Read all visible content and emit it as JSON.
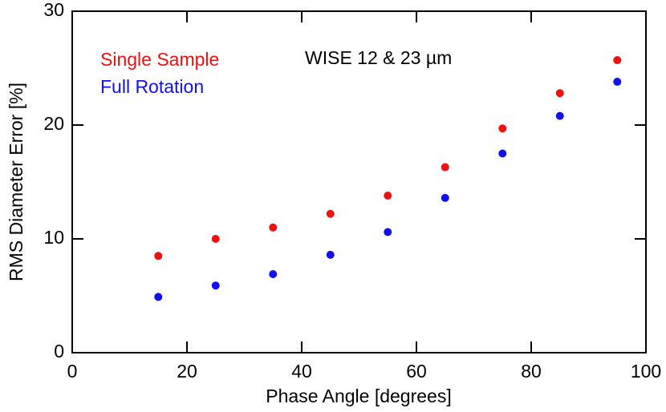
{
  "chart_data": {
    "type": "scatter",
    "xlabel": "Phase Angle [degrees]",
    "ylabel": "RMS Diameter Error [%]",
    "annotation": "WISE 12 & 23 µm",
    "x": [
      15,
      25,
      35,
      45,
      55,
      65,
      75,
      85,
      95
    ],
    "series": [
      {
        "name": "Single Sample",
        "color": "#ee1111",
        "values": [
          8.5,
          10.0,
          11.0,
          12.2,
          13.8,
          16.3,
          19.7,
          22.8,
          25.7
        ]
      },
      {
        "name": "Full Rotation",
        "color": "#1111ee",
        "values": [
          4.9,
          5.9,
          6.9,
          8.6,
          10.6,
          13.6,
          17.5,
          20.8,
          23.8
        ]
      }
    ],
    "xlim": [
      0,
      100
    ],
    "xticks": [
      0,
      20,
      40,
      60,
      80,
      100
    ],
    "ylim": [
      0,
      30
    ],
    "yticks": [
      0,
      10,
      20,
      30
    ],
    "legend": "upper-left"
  }
}
